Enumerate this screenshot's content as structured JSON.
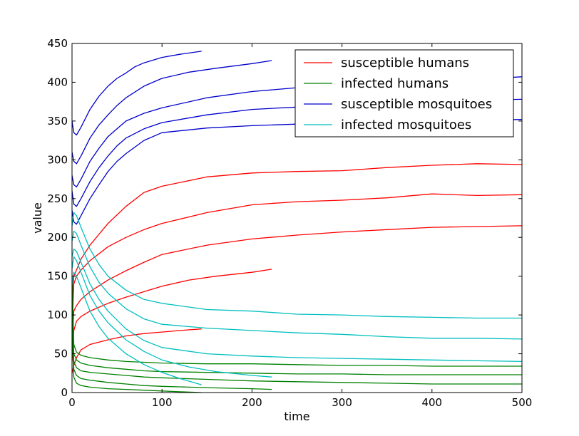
{
  "chart_data": {
    "type": "line",
    "xlabel": "time",
    "ylabel": "value",
    "xlim": [
      0,
      500
    ],
    "ylim": [
      0,
      450
    ],
    "xticks": [
      "0",
      "100",
      "200",
      "300",
      "400",
      "500"
    ],
    "yticks": [
      "0",
      "50",
      "100",
      "150",
      "200",
      "250",
      "300",
      "350",
      "400",
      "450"
    ],
    "grid": false,
    "legend_position": "top-right",
    "colors": {
      "susceptible_humans": "#ff0000",
      "infected_humans": "#008000",
      "susceptible_mosquitoes": "#0000cc",
      "infected_mosquitoes": "#00bfbf"
    },
    "legend": [
      {
        "name": "susceptible humans",
        "key": "susceptible_humans"
      },
      {
        "name": "infected humans",
        "key": "infected_humans"
      },
      {
        "name": "susceptible mosquitoes",
        "key": "susceptible_mosquitoes"
      },
      {
        "name": "infected mosquitoes",
        "key": "infected_mosquitoes"
      }
    ],
    "series": [
      {
        "key": "susceptible_humans",
        "x": [
          0,
          2,
          5,
          10,
          20,
          40,
          60,
          80,
          100,
          120,
          144
        ],
        "y": [
          25,
          35,
          45,
          55,
          62,
          68,
          73,
          76,
          78,
          80,
          82
        ]
      },
      {
        "key": "susceptible_humans",
        "x": [
          0,
          2,
          5,
          10,
          20,
          40,
          60,
          80,
          100,
          130,
          160,
          200,
          222
        ],
        "y": [
          40,
          80,
          92,
          98,
          105,
          115,
          123,
          130,
          137,
          145,
          150,
          155,
          159
        ]
      },
      {
        "key": "susceptible_humans",
        "x": [
          0,
          2,
          5,
          10,
          20,
          40,
          60,
          80,
          100,
          150,
          200,
          250,
          300,
          350,
          400,
          450,
          500
        ],
        "y": [
          60,
          105,
          112,
          120,
          130,
          145,
          157,
          168,
          178,
          190,
          198,
          203,
          207,
          210,
          213,
          214,
          215
        ]
      },
      {
        "key": "susceptible_humans",
        "x": [
          0,
          2,
          5,
          10,
          20,
          40,
          60,
          80,
          100,
          150,
          200,
          250,
          300,
          350,
          400,
          450,
          500
        ],
        "y": [
          80,
          140,
          150,
          158,
          170,
          188,
          200,
          210,
          218,
          232,
          242,
          246,
          248,
          251,
          256,
          254,
          255
        ]
      },
      {
        "key": "susceptible_humans",
        "x": [
          0,
          2,
          5,
          10,
          20,
          40,
          60,
          80,
          100,
          150,
          200,
          250,
          300,
          350,
          400,
          450,
          500
        ],
        "y": [
          100,
          150,
          158,
          172,
          190,
          218,
          240,
          258,
          266,
          278,
          283,
          285,
          286,
          290,
          293,
          295,
          294
        ]
      },
      {
        "key": "infected_humans",
        "x": [
          0,
          2,
          5,
          10,
          20,
          40,
          60,
          80,
          100,
          120,
          144
        ],
        "y": [
          80,
          20,
          12,
          9,
          7,
          5,
          4,
          3,
          2,
          1,
          0
        ]
      },
      {
        "key": "infected_humans",
        "x": [
          0,
          2,
          5,
          10,
          20,
          40,
          60,
          80,
          100,
          130,
          160,
          200,
          222
        ],
        "y": [
          100,
          30,
          22,
          18,
          16,
          13,
          11,
          9,
          8,
          7,
          6,
          5,
          4
        ]
      },
      {
        "key": "infected_humans",
        "x": [
          0,
          2,
          5,
          10,
          20,
          40,
          60,
          80,
          100,
          150,
          200,
          250,
          300,
          350,
          400,
          450,
          500
        ],
        "y": [
          115,
          40,
          32,
          28,
          26,
          24,
          22,
          20,
          19,
          17,
          15,
          14,
          13,
          12,
          11,
          11,
          11
        ]
      },
      {
        "key": "infected_humans",
        "x": [
          0,
          2,
          5,
          10,
          20,
          40,
          60,
          80,
          100,
          150,
          200,
          250,
          300,
          350,
          400,
          450,
          500
        ],
        "y": [
          130,
          50,
          42,
          38,
          35,
          32,
          30,
          28,
          27,
          26,
          25,
          24,
          24,
          23,
          23,
          23,
          23
        ]
      },
      {
        "key": "infected_humans",
        "x": [
          0,
          2,
          5,
          10,
          20,
          40,
          60,
          80,
          100,
          150,
          200,
          250,
          300,
          350,
          400,
          450,
          500
        ],
        "y": [
          150,
          62,
          52,
          48,
          45,
          42,
          40,
          39,
          38,
          37,
          37,
          36,
          35,
          35,
          34,
          34,
          34
        ]
      },
      {
        "key": "susceptible_mosquitoes",
        "x": [
          0,
          2,
          5,
          10,
          20,
          30,
          40,
          50,
          60,
          70,
          80,
          100,
          120,
          144
        ],
        "y": [
          350,
          335,
          332,
          342,
          365,
          382,
          395,
          405,
          412,
          420,
          425,
          432,
          436,
          440
        ]
      },
      {
        "key": "susceptible_mosquitoes",
        "x": [
          0,
          2,
          5,
          10,
          20,
          30,
          40,
          50,
          60,
          80,
          100,
          130,
          160,
          200,
          222
        ],
        "y": [
          310,
          298,
          295,
          305,
          328,
          345,
          358,
          370,
          380,
          395,
          405,
          413,
          418,
          424,
          428
        ]
      },
      {
        "key": "susceptible_mosquitoes",
        "x": [
          0,
          2,
          5,
          10,
          20,
          30,
          40,
          50,
          60,
          80,
          100,
          150,
          200,
          250,
          300,
          350,
          400,
          450,
          500
        ],
        "y": [
          280,
          268,
          265,
          275,
          298,
          315,
          330,
          340,
          350,
          360,
          367,
          380,
          388,
          393,
          396,
          400,
          402,
          404,
          407
        ]
      },
      {
        "key": "susceptible_mosquitoes",
        "x": [
          0,
          2,
          5,
          10,
          20,
          30,
          40,
          50,
          60,
          80,
          100,
          150,
          200,
          250,
          300,
          350,
          400,
          450,
          500
        ],
        "y": [
          260,
          243,
          240,
          250,
          272,
          290,
          305,
          318,
          328,
          340,
          348,
          358,
          365,
          368,
          371,
          372,
          374,
          377,
          378
        ]
      },
      {
        "key": "susceptible_mosquitoes",
        "x": [
          0,
          2,
          5,
          10,
          20,
          30,
          40,
          50,
          60,
          80,
          100,
          150,
          200,
          250,
          300,
          350,
          400,
          450,
          500
        ],
        "y": [
          235,
          220,
          217,
          228,
          250,
          268,
          285,
          298,
          308,
          325,
          335,
          341,
          344,
          346,
          347,
          348,
          350,
          351,
          352
        ]
      },
      {
        "key": "infected_mosquitoes",
        "x": [
          0,
          2,
          5,
          10,
          20,
          30,
          40,
          60,
          80,
          100,
          120,
          144
        ],
        "y": [
          140,
          155,
          150,
          135,
          105,
          85,
          70,
          50,
          36,
          26,
          18,
          10
        ]
      },
      {
        "key": "infected_mosquitoes",
        "x": [
          0,
          2,
          5,
          10,
          20,
          30,
          40,
          60,
          80,
          100,
          130,
          160,
          200,
          222
        ],
        "y": [
          160,
          175,
          170,
          155,
          125,
          105,
          90,
          68,
          53,
          42,
          33,
          27,
          22,
          20
        ]
      },
      {
        "key": "infected_mosquitoes",
        "x": [
          0,
          2,
          5,
          10,
          20,
          30,
          40,
          60,
          80,
          100,
          150,
          200,
          250,
          300,
          350,
          400,
          450,
          500
        ],
        "y": [
          175,
          185,
          182,
          168,
          140,
          120,
          105,
          82,
          67,
          58,
          50,
          47,
          45,
          44,
          43,
          42,
          41,
          40
        ]
      },
      {
        "key": "infected_mosquitoes",
        "x": [
          0,
          2,
          5,
          10,
          20,
          30,
          40,
          60,
          80,
          100,
          150,
          200,
          250,
          300,
          350,
          400,
          450,
          500
        ],
        "y": [
          195,
          208,
          205,
          190,
          162,
          142,
          128,
          108,
          95,
          88,
          83,
          80,
          77,
          75,
          72,
          70,
          70,
          69
        ]
      },
      {
        "key": "infected_mosquitoes",
        "x": [
          0,
          2,
          5,
          10,
          20,
          30,
          40,
          60,
          80,
          100,
          150,
          200,
          250,
          300,
          350,
          400,
          450,
          500
        ],
        "y": [
          215,
          232,
          228,
          213,
          185,
          165,
          150,
          132,
          120,
          115,
          107,
          105,
          101,
          100,
          98,
          97,
          96,
          96
        ]
      }
    ]
  }
}
